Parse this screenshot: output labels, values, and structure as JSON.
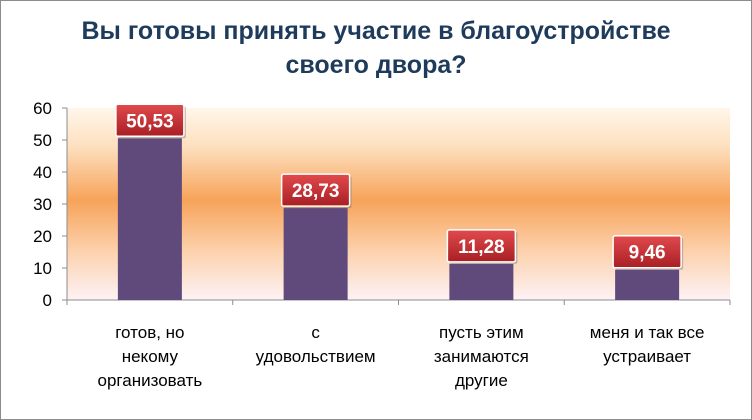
{
  "chart_data": {
    "type": "bar",
    "title_lines": [
      "Вы готовы  принять участие в благоустройстве",
      "своего двора?"
    ],
    "categories": [
      [
        "готов, но",
        "некому",
        "организовать"
      ],
      [
        "с",
        "удовольствием"
      ],
      [
        "пусть этим",
        "занимаются",
        "другие"
      ],
      [
        "меня и так все",
        "устраивает"
      ]
    ],
    "values": [
      50.53,
      28.73,
      11.28,
      9.46
    ],
    "data_labels": [
      "50,53",
      "28,73",
      "11,28",
      "9,46"
    ],
    "y_ticks": [
      "0",
      "10",
      "20",
      "30",
      "40",
      "50",
      "60"
    ],
    "ylim": [
      0,
      60
    ],
    "grid": false,
    "legend": "none",
    "colors": {
      "bar": "#604a7b",
      "label_box": "#c0282d",
      "band": "#f7a35a"
    }
  }
}
